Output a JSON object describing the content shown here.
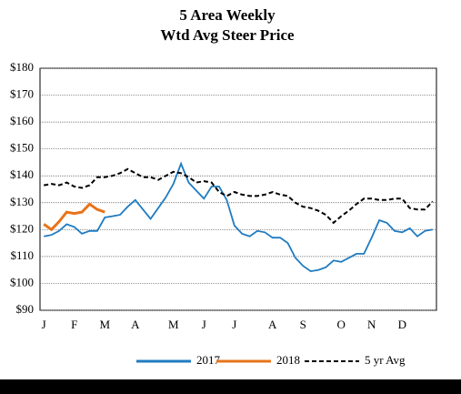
{
  "chart_data": {
    "type": "line",
    "title": [
      "5 Area Weekly",
      "Wtd Avg Steer Price"
    ],
    "categories": [
      "J",
      null,
      null,
      null,
      "F",
      null,
      null,
      null,
      "M",
      null,
      null,
      null,
      "A",
      null,
      null,
      null,
      null,
      "M",
      null,
      null,
      null,
      "J",
      null,
      null,
      null,
      "J",
      null,
      null,
      null,
      null,
      "A",
      null,
      null,
      null,
      "S",
      null,
      null,
      null,
      null,
      "O",
      null,
      null,
      null,
      "N",
      null,
      null,
      null,
      "D",
      null,
      null,
      null,
      null
    ],
    "series": [
      {
        "name": "2017",
        "color": "#1f7bc1",
        "dash": false,
        "values": [
          117.5,
          118,
          119.5,
          122,
          121,
          118.5,
          119.5,
          119.5,
          124.5,
          125,
          125.5,
          128.5,
          131,
          127.5,
          124,
          128,
          132,
          137,
          144.5,
          137.5,
          134.5,
          131.5,
          136,
          136,
          131,
          121.5,
          118.5,
          117.5,
          119.5,
          119,
          117,
          117,
          115,
          109.5,
          106.5,
          104.5,
          105,
          106,
          108.5,
          108,
          109.5,
          111,
          111,
          117,
          123.5,
          122.5,
          119.5,
          119,
          120.5,
          117.5,
          119.5,
          120
        ]
      },
      {
        "name": "2018",
        "color": "#e8731a",
        "dash": false,
        "values": [
          122,
          120,
          123,
          126.5,
          126,
          126.5,
          129.5,
          127.5,
          126.5,
          null,
          null,
          null,
          null,
          null,
          null,
          null,
          null,
          null,
          null,
          null,
          null,
          null,
          null,
          null,
          null,
          null,
          null,
          null,
          null,
          null,
          null,
          null,
          null,
          null,
          null,
          null,
          null,
          null,
          null,
          null,
          null,
          null,
          null,
          null,
          null,
          null,
          null,
          null,
          null,
          null,
          null,
          null
        ]
      },
      {
        "name": "5 yr Avg",
        "color": "#000000",
        "dash": true,
        "values": [
          136.5,
          137,
          136.5,
          137.5,
          136,
          135.5,
          136.5,
          139.5,
          139.5,
          140,
          141,
          142.5,
          141,
          139.5,
          139.5,
          138.5,
          140,
          141.5,
          141,
          139.5,
          137.5,
          138,
          137.5,
          134,
          132.5,
          134,
          133,
          132.5,
          132.5,
          133,
          134,
          133,
          132.5,
          130,
          128.5,
          128,
          127,
          125.5,
          122.5,
          125,
          127,
          129.5,
          131.5,
          131.5,
          131,
          131,
          131.5,
          131.5,
          128,
          127.5,
          127.5,
          130.5
        ]
      }
    ],
    "ylim": [
      90,
      180
    ],
    "yticks": [
      {
        "value": 90,
        "label": "$90"
      },
      {
        "value": 100,
        "label": "$100"
      },
      {
        "value": 110,
        "label": "$110"
      },
      {
        "value": 120,
        "label": "$120"
      },
      {
        "value": 130,
        "label": "$130"
      },
      {
        "value": 140,
        "label": "$140"
      },
      {
        "value": 150,
        "label": "$150"
      },
      {
        "value": 160,
        "label": "$160"
      },
      {
        "value": 170,
        "label": "$170"
      },
      {
        "value": 180,
        "label": "$180"
      }
    ],
    "grid": true,
    "legend": "bottom"
  }
}
